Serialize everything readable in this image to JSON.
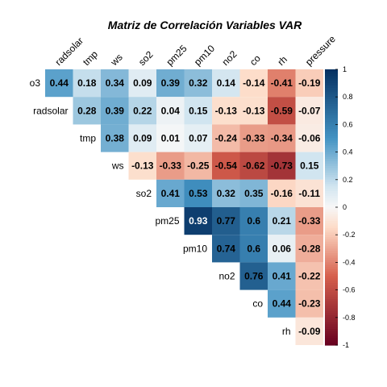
{
  "chart_data": {
    "type": "heatmap",
    "title": "Matriz de Correlación Variables VAR",
    "rows": [
      "o3",
      "radsolar",
      "tmp",
      "ws",
      "so2",
      "pm25",
      "pm10",
      "no2",
      "co",
      "rh"
    ],
    "cols": [
      "radsolar",
      "tmp",
      "ws",
      "so2",
      "pm25",
      "pm10",
      "no2",
      "co",
      "rh",
      "pressure"
    ],
    "cells": [
      [
        0.44,
        0.18,
        0.34,
        0.09,
        0.39,
        0.32,
        0.14,
        -0.14,
        -0.41,
        -0.19
      ],
      [
        null,
        0.28,
        0.39,
        0.22,
        0.04,
        0.15,
        -0.13,
        -0.13,
        -0.59,
        -0.07
      ],
      [
        null,
        null,
        0.38,
        0.09,
        0.01,
        0.07,
        -0.24,
        -0.33,
        -0.34,
        -0.06
      ],
      [
        null,
        null,
        null,
        -0.13,
        -0.33,
        -0.25,
        -0.54,
        -0.62,
        -0.73,
        0.15
      ],
      [
        null,
        null,
        null,
        null,
        0.41,
        0.53,
        0.32,
        0.35,
        -0.16,
        -0.11
      ],
      [
        null,
        null,
        null,
        null,
        null,
        0.93,
        0.77,
        0.6,
        0.21,
        -0.33
      ],
      [
        null,
        null,
        null,
        null,
        null,
        null,
        0.74,
        0.6,
        0.06,
        -0.28
      ],
      [
        null,
        null,
        null,
        null,
        null,
        null,
        null,
        0.76,
        0.41,
        -0.22
      ],
      [
        null,
        null,
        null,
        null,
        null,
        null,
        null,
        null,
        0.44,
        -0.23
      ],
      [
        null,
        null,
        null,
        null,
        null,
        null,
        null,
        null,
        null,
        -0.09
      ]
    ],
    "labels": [
      [
        "0.44",
        "0.18",
        "0.34",
        "0.09",
        "0.39",
        "0.32",
        "0.14",
        "-0.14",
        "-0.41",
        "-0.19"
      ],
      [
        null,
        "0.28",
        "0.39",
        "0.22",
        "0.04",
        "0.15",
        "-0.13",
        "-0.13",
        "-0.59",
        "-0.07"
      ],
      [
        null,
        null,
        "0.38",
        "0.09",
        "0.01",
        "0.07",
        "-0.24",
        "-0.33",
        "-0.34",
        "-0.06"
      ],
      [
        null,
        null,
        null,
        "-0.13",
        "-0.33",
        "-0.25",
        "-0.54",
        "-0.62",
        "-0.73",
        "0.15"
      ],
      [
        null,
        null,
        null,
        null,
        "0.41",
        "0.53",
        "0.32",
        "0.35",
        "-0.16",
        "-0.11"
      ],
      [
        null,
        null,
        null,
        null,
        null,
        "0.93",
        "0.77",
        "0.6",
        "0.21",
        "-0.33"
      ],
      [
        null,
        null,
        null,
        null,
        null,
        null,
        "0.74",
        "0.6",
        "0.06",
        "-0.28"
      ],
      [
        null,
        null,
        null,
        null,
        null,
        null,
        null,
        "0.76",
        "0.41",
        "-0.22"
      ],
      [
        null,
        null,
        null,
        null,
        null,
        null,
        null,
        null,
        "0.44",
        "-0.23"
      ],
      [
        null,
        null,
        null,
        null,
        null,
        null,
        null,
        null,
        null,
        "-0.09"
      ]
    ],
    "value_range": [
      -1,
      1
    ],
    "colorbar_ticks": [
      "1",
      "0.8",
      "0.6",
      "0.4",
      "0.2",
      "0",
      "-0.2",
      "-0.4",
      "-0.6",
      "-0.8",
      "-1"
    ],
    "colorbar_values": [
      1,
      0.8,
      0.6,
      0.4,
      0.2,
      0,
      -0.2,
      -0.4,
      -0.6,
      -0.8,
      -1
    ],
    "colors": {
      "negative_strong": "#67001F",
      "negative_mid": "#D6604D",
      "negative_light": "#FDDBC7",
      "neutral": "#F7F7F7",
      "positive_light": "#D1E5F0",
      "positive_mid": "#4393C3",
      "positive_strong": "#053061"
    },
    "legend_position": "right",
    "grid": false
  }
}
